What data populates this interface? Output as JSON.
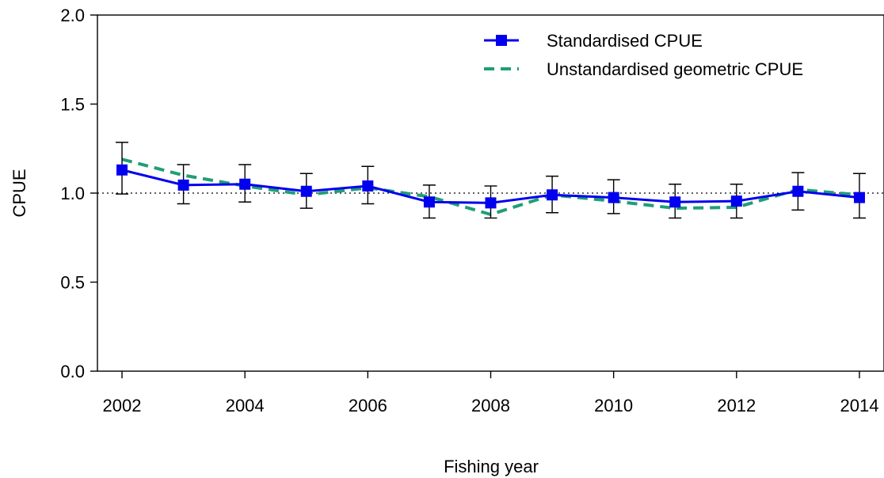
{
  "chart_data": {
    "type": "line",
    "title": "",
    "xlabel": "Fishing year",
    "ylabel": "CPUE",
    "xlim": [
      2001.6,
      2014.4
    ],
    "ylim": [
      0.0,
      2.0
    ],
    "x_ticks": [
      2002,
      2004,
      2006,
      2008,
      2010,
      2012,
      2014
    ],
    "y_ticks": [
      0.0,
      0.5,
      1.0,
      1.5,
      2.0
    ],
    "y_tick_labels": [
      "0.0",
      "0.5",
      "1.0",
      "1.5",
      "2.0"
    ],
    "reference_line": {
      "y": 1.0,
      "style": "dotted"
    },
    "grid": false,
    "legend_position": "top-right",
    "series": [
      {
        "name": "Standardised CPUE",
        "color": "#0000ee",
        "style": "solid",
        "marker": "square",
        "x": [
          2002,
          2003,
          2004,
          2005,
          2006,
          2007,
          2008,
          2009,
          2010,
          2011,
          2012,
          2013,
          2014
        ],
        "y": [
          1.13,
          1.045,
          1.05,
          1.01,
          1.04,
          0.95,
          0.945,
          0.99,
          0.975,
          0.95,
          0.955,
          1.01,
          0.975
        ],
        "error_low": [
          0.995,
          0.94,
          0.95,
          0.915,
          0.94,
          0.86,
          0.86,
          0.89,
          0.885,
          0.86,
          0.86,
          0.905,
          0.86
        ],
        "error_high": [
          1.285,
          1.16,
          1.16,
          1.11,
          1.15,
          1.045,
          1.04,
          1.095,
          1.075,
          1.05,
          1.05,
          1.115,
          1.11
        ]
      },
      {
        "name": "Unstandardised geometric CPUE",
        "color": "#1f9e77",
        "style": "dashed",
        "marker": "none",
        "x": [
          2002,
          2003,
          2004,
          2005,
          2006,
          2007,
          2008,
          2009,
          2010,
          2011,
          2012,
          2013,
          2014
        ],
        "y": [
          1.19,
          1.1,
          1.04,
          0.99,
          1.03,
          0.98,
          0.88,
          0.99,
          0.955,
          0.915,
          0.92,
          1.02,
          0.99
        ]
      }
    ]
  }
}
